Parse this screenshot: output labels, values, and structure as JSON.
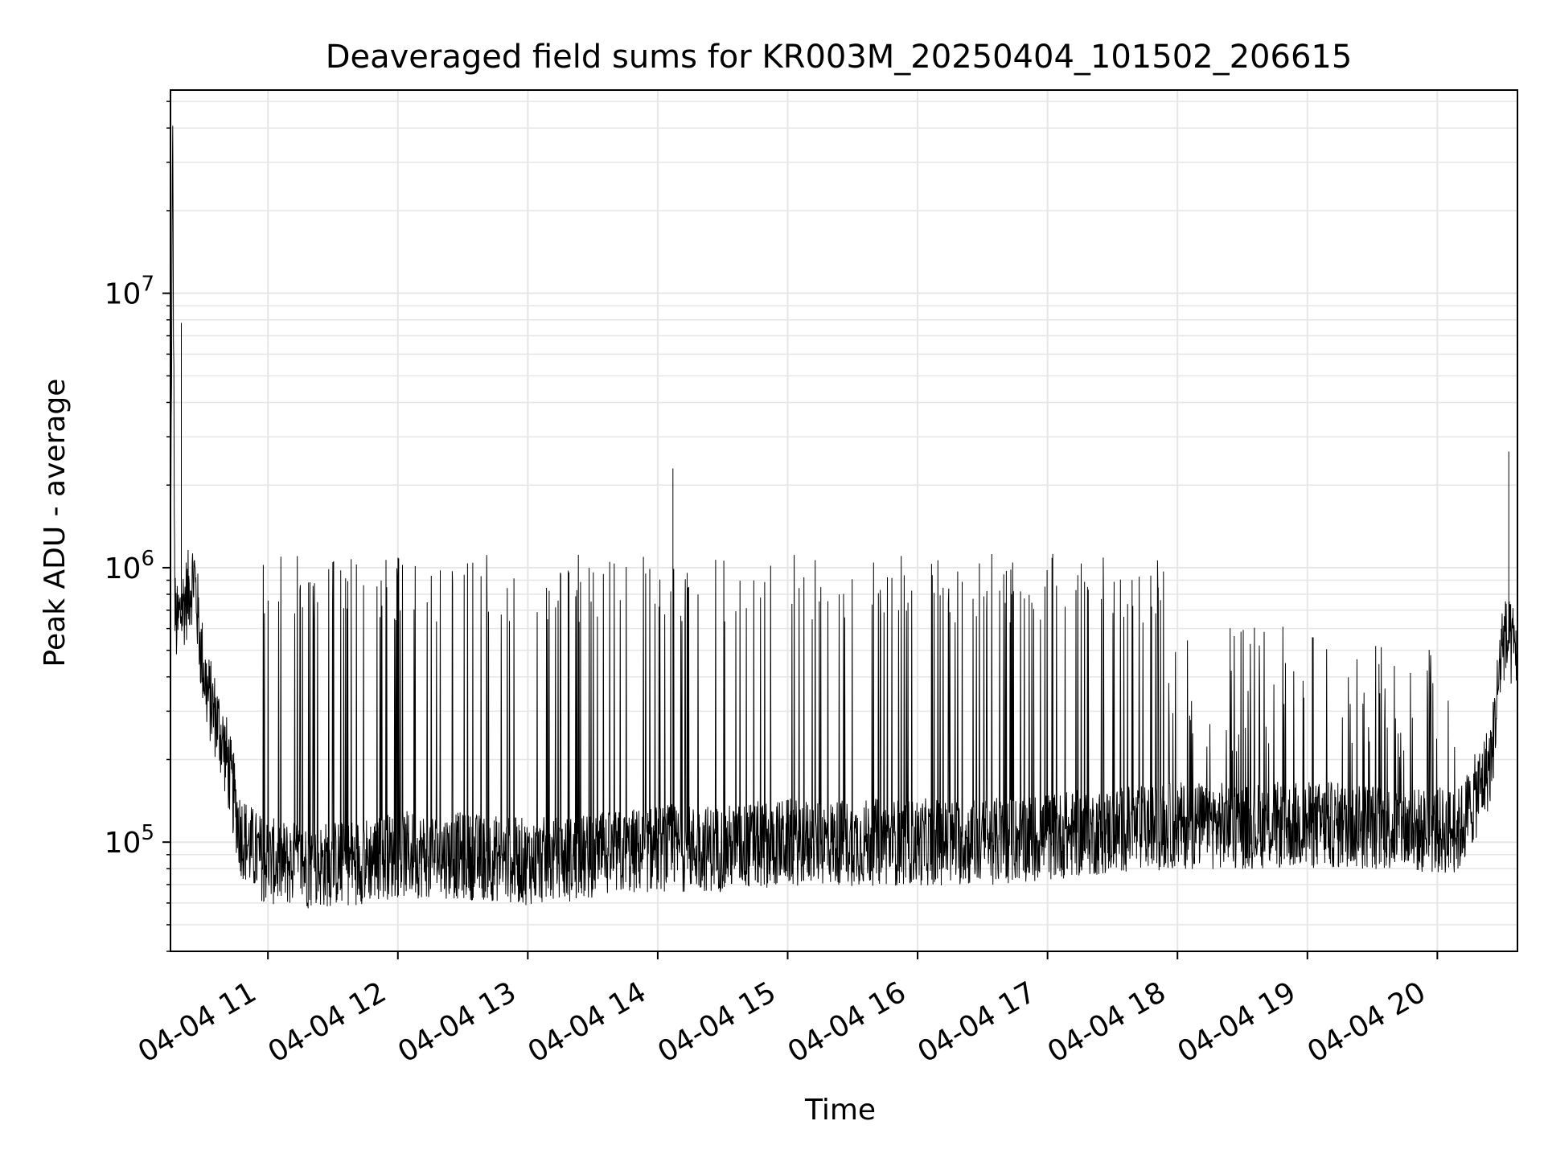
{
  "chart_data": {
    "type": "line",
    "title": "Deaveraged field sums for KR003M_20250404_101502_206615",
    "xlabel": "Time",
    "ylabel": "Peak ADU - average",
    "yscale": "log",
    "ylim": [
      40000,
      55000000
    ],
    "xlim": [
      "2025-04-04 10:15",
      "2025-04-04 20:37"
    ],
    "x_tick_labels": [
      "04-04 11",
      "04-04 12",
      "04-04 13",
      "04-04 14",
      "04-04 15",
      "04-04 16",
      "04-04 17",
      "04-04 18",
      "04-04 19",
      "04-04 20"
    ],
    "y_tick_labels": [
      {
        "value": 100000,
        "base": "10",
        "exp": "5"
      },
      {
        "value": 1000000,
        "base": "10",
        "exp": "6"
      },
      {
        "value": 10000000,
        "base": "10",
        "exp": "7"
      }
    ],
    "grid": true,
    "line_color": "#000000",
    "series": [
      {
        "x": [
          "2025-04-04 10:15",
          "2025-04-04 10:16",
          "2025-04-04 10:17",
          "2025-04-04 10:18",
          "2025-04-04 10:20",
          "2025-04-04 10:23",
          "2025-04-04 10:26",
          "2025-04-04 10:29",
          "2025-04-04 10:32",
          "2025-04-04 10:35",
          "2025-04-04 10:38",
          "2025-04-04 10:41",
          "2025-04-04 10:44",
          "2025-04-04 10:47",
          "2025-04-04 10:50",
          "2025-04-04 10:55",
          "2025-04-04 11:00",
          "2025-04-04 11:20",
          "2025-04-04 11:40",
          "2025-04-04 12:00",
          "2025-04-04 12:20",
          "2025-04-04 12:40",
          "2025-04-04 13:00",
          "2025-04-04 13:30",
          "2025-04-04 14:00",
          "2025-04-04 14:30",
          "2025-04-04 15:00",
          "2025-04-04 15:30",
          "2025-04-04 16:00",
          "2025-04-04 16:30",
          "2025-04-04 17:00",
          "2025-04-04 17:30",
          "2025-04-04 18:00",
          "2025-04-04 18:30",
          "2025-04-04 19:00",
          "2025-04-04 19:30",
          "2025-04-04 19:50",
          "2025-04-04 20:00",
          "2025-04-04 20:10",
          "2025-04-04 20:20",
          "2025-04-04 20:25",
          "2025-04-04 20:30",
          "2025-04-04 20:37"
        ],
        "y": [
          800000,
          38000000,
          700000,
          600000,
          700000,
          800000,
          950000,
          500000,
          350000,
          300000,
          250000,
          200000,
          150000,
          110000,
          100000,
          90000,
          85000,
          82000,
          85000,
          90000,
          90000,
          88000,
          85000,
          88000,
          95000,
          95000,
          100000,
          100000,
          100000,
          100000,
          105000,
          110000,
          115000,
          115000,
          115000,
          115000,
          110000,
          110000,
          110000,
          160000,
          200000,
          550000,
          500000
        ],
        "spikes": [
          [
            "2025-04-04 10:20",
            7800000
          ],
          [
            "2025-04-04 14:07",
            2300000
          ],
          [
            "2025-04-04 20:33",
            2650000
          ]
        ]
      }
    ]
  }
}
